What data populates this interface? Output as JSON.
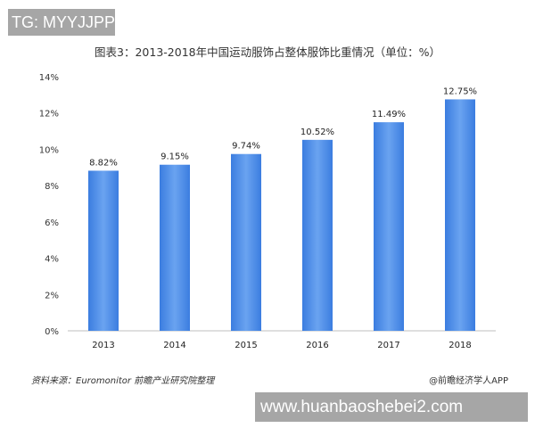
{
  "watermark_top": "TG: MYYJJPP",
  "watermark_bottom": "www.huanbaoshebei2.com",
  "source": "资料来源：Euromonitor 前瞻产业研究院整理",
  "credit": "@前瞻经济学人APP",
  "chart_data": {
    "type": "bar",
    "title": "图表3：2013-2018年中国运动服饰占整体服饰比重情况（单位：%）",
    "categories": [
      "2013",
      "2014",
      "2015",
      "2016",
      "2017",
      "2018"
    ],
    "values": [
      8.82,
      9.15,
      9.74,
      10.52,
      11.49,
      12.75
    ],
    "data_labels": [
      "8.82%",
      "9.15%",
      "9.74%",
      "10.52%",
      "11.49%",
      "12.75%"
    ],
    "ylim": [
      0,
      14
    ],
    "yticks": [
      "0%",
      "2%",
      "4%",
      "6%",
      "8%",
      "10%",
      "12%",
      "14%"
    ],
    "grid": false,
    "bar_color": "#3b7de0",
    "bar_color_light": "#6aa3f0"
  }
}
